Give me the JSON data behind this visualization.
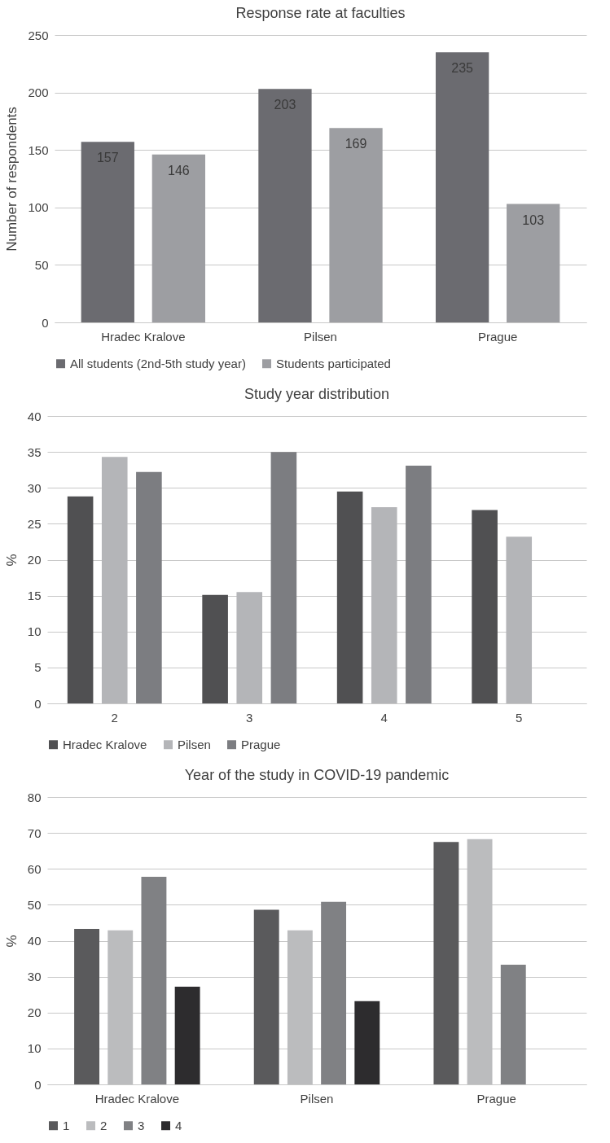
{
  "chart_data": [
    {
      "type": "bar",
      "title": "Response rate at faculties",
      "ylabel": "Number of respondents",
      "categories": [
        "Hradec Kralove",
        "Pilsen",
        "Prague"
      ],
      "series": [
        {
          "name": "All students (2nd-5th study year)",
          "color": "#6b6b70",
          "values": [
            157,
            203,
            235
          ]
        },
        {
          "name": "Students participated",
          "color": "#9d9ea2",
          "values": [
            146,
            169,
            103
          ]
        }
      ],
      "ylim": [
        0,
        250
      ],
      "yticks": [
        0,
        50,
        100,
        150,
        200,
        250
      ],
      "grid": "y",
      "legend": "bottom",
      "data_labels": true
    },
    {
      "type": "bar",
      "title": "Study year distribution",
      "ylabel": "%",
      "categories": [
        "2",
        "3",
        "4",
        "5"
      ],
      "series": [
        {
          "name": "Hradec Kralove",
          "color": "#505052",
          "values": [
            28.8,
            15.1,
            29.5,
            26.9
          ]
        },
        {
          "name": "Pilsen",
          "color": "#b4b5b8",
          "values": [
            34.3,
            15.5,
            27.3,
            23.2
          ]
        },
        {
          "name": "Prague",
          "color": "#7c7d81",
          "values": [
            32.2,
            35.0,
            33.1,
            null
          ]
        }
      ],
      "ylim": [
        0,
        40
      ],
      "yticks": [
        0,
        5,
        10,
        15,
        20,
        25,
        30,
        35,
        40
      ],
      "grid": "y",
      "legend": "bottom"
    },
    {
      "type": "bar",
      "title": "Year of the study in COVID-19 pandemic",
      "ylabel": "%",
      "categories": [
        "Hradec Kralove",
        "Pilsen",
        "Prague"
      ],
      "series": [
        {
          "name": "1",
          "color": "#5a5a5c",
          "values": [
            43.3,
            48.6,
            67.5
          ]
        },
        {
          "name": "2",
          "color": "#bbbcbe",
          "values": [
            42.9,
            42.9,
            68.3
          ]
        },
        {
          "name": "3",
          "color": "#808184",
          "values": [
            57.8,
            50.8,
            33.3
          ]
        },
        {
          "name": "4",
          "color": "#2d2c2e",
          "values": [
            27.2,
            23.2,
            null
          ]
        }
      ],
      "ylim": [
        0,
        80
      ],
      "yticks": [
        0,
        10,
        20,
        30,
        40,
        50,
        60,
        70,
        80
      ],
      "grid": "y",
      "legend": "bottom"
    }
  ]
}
